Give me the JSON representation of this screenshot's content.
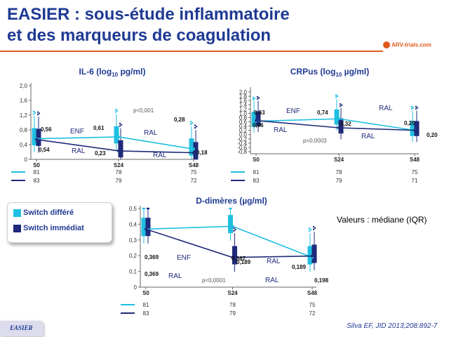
{
  "slide": {
    "title_line1": "EASIER : sous-étude inflammatoire",
    "title_line2": "et des marqueurs de coagulation",
    "logo": "ARV-trials.com",
    "footer": "EASIER",
    "citation": "Silva EF, JID 2013;208:892-7",
    "note": "Valeurs : médiane (IQR)",
    "colors": {
      "title": "#1f3a93",
      "differe": "#1fbfe0",
      "immediat": "#1f2a7a",
      "accent": "#e05a1e"
    }
  },
  "legend": {
    "items": [
      {
        "label": "Switch différé",
        "color": "#1fbfe0"
      },
      {
        "label": "Switch immédiat",
        "color": "#1f2a7a"
      }
    ]
  },
  "chart_data": [
    {
      "type": "line",
      "title": "IL-6 (log10 pg/ml)",
      "categories": [
        "S0",
        "S24",
        "S48"
      ],
      "yticks": [
        "0",
        "0,4",
        "0,8",
        "1,2",
        "1,6",
        "2,0"
      ],
      "ylim": [
        0,
        2.0
      ],
      "series": [
        {
          "name": "Switch différé",
          "values": [
            0.56,
            0.61,
            0.28
          ],
          "labels": [
            "0,56",
            "0,61",
            "0,28"
          ],
          "n": [
            "81",
            "78",
            "75"
          ]
        },
        {
          "name": "Switch immédiat",
          "values": [
            0.54,
            0.23,
            0.18
          ],
          "labels": [
            "0,54",
            "0,23",
            "0,18"
          ],
          "n": [
            "83",
            "79",
            "72"
          ]
        }
      ],
      "annotations": [
        "ENF",
        "RAL",
        "RAL",
        "RAL",
        "p<0,001"
      ]
    },
    {
      "type": "line",
      "title": "CRPus (log10 µg/ml)",
      "categories": [
        "S0",
        "S24",
        "S48"
      ],
      "yticks": [
        "-0,8",
        "-0,6",
        "-0,4",
        "-0,2",
        "0,0",
        "0,2",
        "0,4",
        "0,6",
        "0,8",
        "1,0",
        "1,2",
        "1,4",
        "1,6",
        "1,8",
        "2,0"
      ],
      "ylim": [
        -0.9,
        2.1
      ],
      "series": [
        {
          "name": "Switch différé",
          "values": [
            0.63,
            0.74,
            0.2
          ],
          "labels": [
            "0,63",
            "0,74",
            "0,20"
          ],
          "n": [
            "81",
            "78",
            "75"
          ]
        },
        {
          "name": "Switch immédiat",
          "values": [
            0.66,
            0.32,
            0.2
          ],
          "labels": [
            "0,66",
            "0,32",
            "0,20"
          ],
          "n": [
            "83",
            "79",
            "71"
          ]
        }
      ],
      "annotations": [
        "ENF",
        "RAL",
        "RAL",
        "RAL",
        "p=0,0003"
      ]
    },
    {
      "type": "line",
      "title": "D-dimères (µg/ml)",
      "categories": [
        "S0",
        "S24",
        "S48"
      ],
      "yticks": [
        "0",
        "0,1",
        "0,2",
        "0,3",
        "0,4",
        "0,5"
      ],
      "ylim": [
        0,
        0.5
      ],
      "series": [
        {
          "name": "Switch différé",
          "values": [
            0.369,
            0.387,
            0.189
          ],
          "labels": [
            "0,369",
            "0,387",
            "0,189"
          ],
          "n": [
            "81",
            "78",
            "75"
          ]
        },
        {
          "name": "Switch immédiat",
          "values": [
            0.369,
            0.189,
            0.198
          ],
          "labels": [
            "0,369",
            "0,189",
            "0,198"
          ],
          "n": [
            "83",
            "79",
            "72"
          ]
        }
      ],
      "annotations": [
        "ENF",
        "RAL",
        "RAL",
        "RAL",
        "p<0,0001"
      ]
    }
  ]
}
